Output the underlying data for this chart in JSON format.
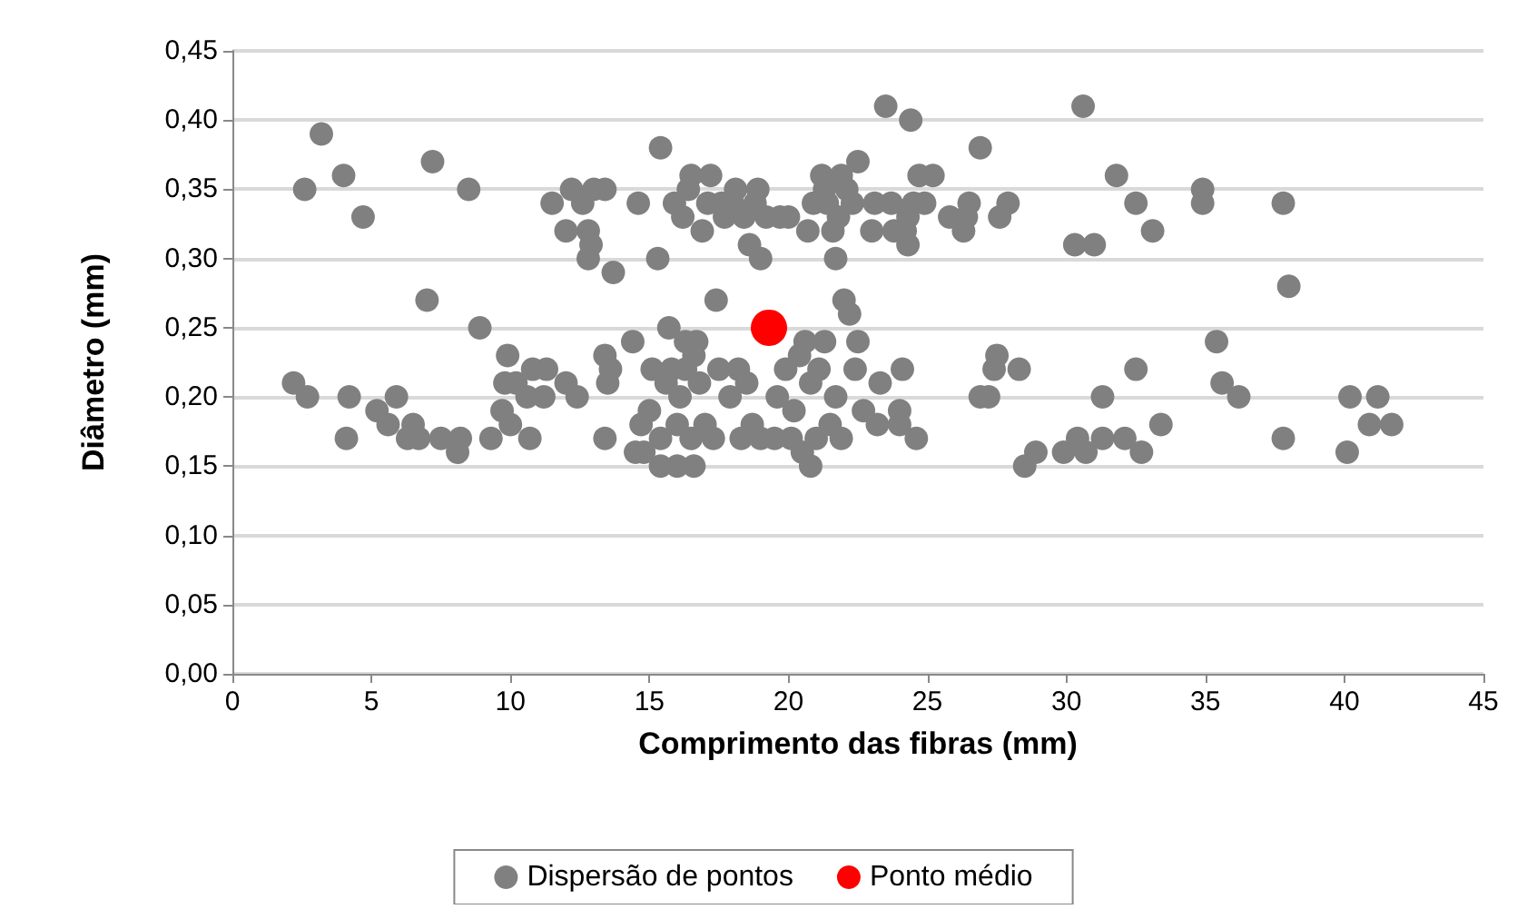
{
  "chart_data": {
    "type": "scatter",
    "xlabel": "Comprimento das fibras (mm)",
    "ylabel": "Diâmetro (mm)",
    "xlim": [
      0,
      45
    ],
    "xticks": [
      0,
      5,
      10,
      15,
      20,
      25,
      30,
      35,
      40,
      45
    ],
    "ylim": [
      0,
      0.45
    ],
    "yticks": [
      {
        "value": 0,
        "label": "0,00"
      },
      {
        "value": 0.05,
        "label": "0,05"
      },
      {
        "value": 0.1,
        "label": "0,10"
      },
      {
        "value": 0.15,
        "label": "0,15"
      },
      {
        "value": 0.2,
        "label": "0,20"
      },
      {
        "value": 0.25,
        "label": "0,25"
      },
      {
        "value": 0.3,
        "label": "0,30"
      },
      {
        "value": 0.35,
        "label": "0,35"
      },
      {
        "value": 0.4,
        "label": "0,40"
      },
      {
        "value": 0.45,
        "label": "0,45"
      }
    ],
    "grid": "y",
    "legend": "bottom",
    "marker": "circle",
    "series": [
      {
        "name": "Dispersão de pontos",
        "color": "#808080",
        "x": [
          2.2,
          2.7,
          2.6,
          3.2,
          4.0,
          4.1,
          4.2,
          4.7,
          5.2,
          5.6,
          5.9,
          6.3,
          6.5,
          6.7,
          7.0,
          7.2,
          7.5,
          8.1,
          8.2,
          8.5,
          8.9,
          9.3,
          9.7,
          9.8,
          9.9,
          10.0,
          10.2,
          10.6,
          10.7,
          10.8,
          11.2,
          11.3,
          11.5,
          12.0,
          12.0,
          12.2,
          12.4,
          12.6,
          12.8,
          12.8,
          12.9,
          13.0,
          13.4,
          13.4,
          13.4,
          13.5,
          13.6,
          13.7,
          14.4,
          14.5,
          14.6,
          14.7,
          14.8,
          15.0,
          15.1,
          15.3,
          15.4,
          15.4,
          15.4,
          15.6,
          15.7,
          15.8,
          15.9,
          16.0,
          16.0,
          16.1,
          16.2,
          16.3,
          16.3,
          16.4,
          16.5,
          16.5,
          16.6,
          16.6,
          16.7,
          16.8,
          16.9,
          17.0,
          17.1,
          17.2,
          17.3,
          17.4,
          17.5,
          17.6,
          17.7,
          17.9,
          18.0,
          18.1,
          18.2,
          18.3,
          18.4,
          18.5,
          18.6,
          18.7,
          18.8,
          18.9,
          19.0,
          19.0,
          19.2,
          19.5,
          19.6,
          19.7,
          19.9,
          20.0,
          20.1,
          20.2,
          20.4,
          20.5,
          20.6,
          20.7,
          20.8,
          20.8,
          20.9,
          21.0,
          21.1,
          21.2,
          21.3,
          21.3,
          21.4,
          21.5,
          21.6,
          21.7,
          21.7,
          21.8,
          21.9,
          21.9,
          22.0,
          22.1,
          22.2,
          22.3,
          22.4,
          22.5,
          22.5,
          22.7,
          23.0,
          23.1,
          23.2,
          23.3,
          23.5,
          23.7,
          23.8,
          24.0,
          24.0,
          24.1,
          24.2,
          24.3,
          24.3,
          24.4,
          24.5,
          24.6,
          24.7,
          24.9,
          25.2,
          25.8,
          26.3,
          26.4,
          26.5,
          26.9,
          26.9,
          27.2,
          27.4,
          27.5,
          27.6,
          27.9,
          28.3,
          28.5,
          28.9,
          29.9,
          30.3,
          30.4,
          30.6,
          30.7,
          31.0,
          31.3,
          31.3,
          31.8,
          32.1,
          32.5,
          32.5,
          32.7,
          33.1,
          33.4,
          34.9,
          34.9,
          35.4,
          35.6,
          36.2,
          37.8,
          37.8,
          38.0,
          40.1,
          40.2,
          40.9,
          41.2,
          41.7
        ],
        "values": [
          0.21,
          0.2,
          0.35,
          0.39,
          0.36,
          0.17,
          0.2,
          0.33,
          0.19,
          0.18,
          0.2,
          0.17,
          0.18,
          0.17,
          0.27,
          0.37,
          0.17,
          0.16,
          0.17,
          0.35,
          0.25,
          0.17,
          0.19,
          0.21,
          0.23,
          0.18,
          0.21,
          0.2,
          0.17,
          0.22,
          0.2,
          0.22,
          0.34,
          0.32,
          0.21,
          0.35,
          0.2,
          0.34,
          0.3,
          0.32,
          0.31,
          0.35,
          0.35,
          0.17,
          0.23,
          0.21,
          0.22,
          0.29,
          0.24,
          0.16,
          0.34,
          0.18,
          0.16,
          0.19,
          0.22,
          0.3,
          0.38,
          0.17,
          0.15,
          0.21,
          0.25,
          0.22,
          0.34,
          0.18,
          0.15,
          0.2,
          0.33,
          0.24,
          0.22,
          0.35,
          0.36,
          0.17,
          0.15,
          0.23,
          0.24,
          0.21,
          0.32,
          0.18,
          0.34,
          0.36,
          0.17,
          0.27,
          0.22,
          0.34,
          0.33,
          0.2,
          0.34,
          0.35,
          0.22,
          0.17,
          0.33,
          0.21,
          0.31,
          0.18,
          0.34,
          0.35,
          0.3,
          0.17,
          0.33,
          0.17,
          0.2,
          0.33,
          0.22,
          0.33,
          0.17,
          0.19,
          0.23,
          0.16,
          0.24,
          0.32,
          0.15,
          0.21,
          0.34,
          0.17,
          0.22,
          0.36,
          0.24,
          0.35,
          0.34,
          0.18,
          0.32,
          0.3,
          0.2,
          0.33,
          0.36,
          0.17,
          0.27,
          0.35,
          0.26,
          0.34,
          0.22,
          0.37,
          0.24,
          0.19,
          0.32,
          0.34,
          0.18,
          0.21,
          0.41,
          0.34,
          0.32,
          0.18,
          0.19,
          0.22,
          0.32,
          0.33,
          0.31,
          0.4,
          0.34,
          0.17,
          0.36,
          0.34,
          0.36,
          0.33,
          0.32,
          0.33,
          0.34,
          0.38,
          0.2,
          0.2,
          0.22,
          0.23,
          0.33,
          0.34,
          0.22,
          0.15,
          0.16,
          0.16,
          0.31,
          0.17,
          0.41,
          0.16,
          0.31,
          0.2,
          0.17,
          0.36,
          0.17,
          0.22,
          0.34,
          0.16,
          0.32,
          0.18,
          0.35,
          0.34,
          0.24,
          0.21,
          0.2,
          0.17,
          0.34,
          0.28,
          0.16,
          0.2,
          0.18,
          0.2,
          0.18
        ]
      },
      {
        "name": "Ponto médio",
        "color": "#ff0000",
        "x": [
          19.3
        ],
        "values": [
          0.25
        ]
      }
    ]
  }
}
